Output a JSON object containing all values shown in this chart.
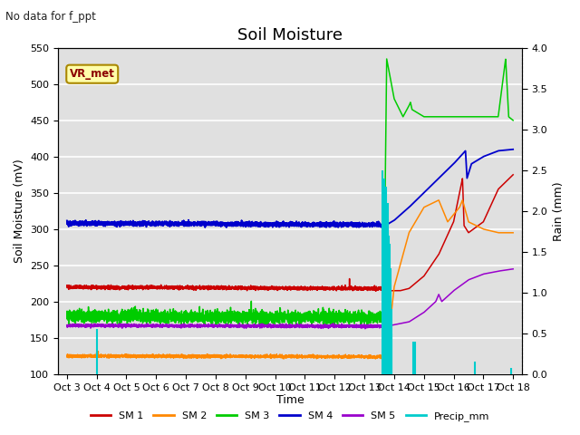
{
  "title": "Soil Moisture",
  "subtitle": "No data for f_ppt",
  "ylabel_left": "Soil Moisture (mV)",
  "ylabel_right": "Rain (mm)",
  "xlabel": "Time",
  "ylim_left": [
    100,
    550
  ],
  "ylim_right": [
    0.0,
    4.0
  ],
  "yticks_left": [
    100,
    150,
    200,
    250,
    300,
    350,
    400,
    450,
    500,
    550
  ],
  "yticks_right": [
    0.0,
    0.5,
    1.0,
    1.5,
    2.0,
    2.5,
    3.0,
    3.5,
    4.0
  ],
  "xtick_labels": [
    "Oct 3",
    "Oct 4",
    "Oct 5",
    "Oct 6",
    "Oct 7",
    "Oct 8",
    "Oct 9",
    "Oct 10",
    "Oct 11",
    "Oct 12",
    "Oct 13",
    "Oct 14",
    "Oct 15",
    "Oct 16",
    "Oct 17",
    "Oct 18"
  ],
  "plot_bg_color": "#e0e0e0",
  "fig_bg_color": "#ffffff",
  "vr_met_label": "VR_met",
  "legend_entries": [
    "SM 1",
    "SM 2",
    "SM 3",
    "SM 4",
    "SM 5",
    "Precip_mm"
  ],
  "legend_colors": [
    "#cc0000",
    "#ff8800",
    "#00cc00",
    "#0000cc",
    "#9900cc",
    "#00cccc"
  ],
  "sm1_color": "#cc0000",
  "sm2_color": "#ff8800",
  "sm3_color": "#00cc00",
  "sm4_color": "#0000cc",
  "sm5_color": "#9900cc",
  "precip_color": "#00cccc",
  "grid_color": "#f8f8f8",
  "title_fontsize": 13,
  "label_fontsize": 9,
  "tick_fontsize": 8
}
